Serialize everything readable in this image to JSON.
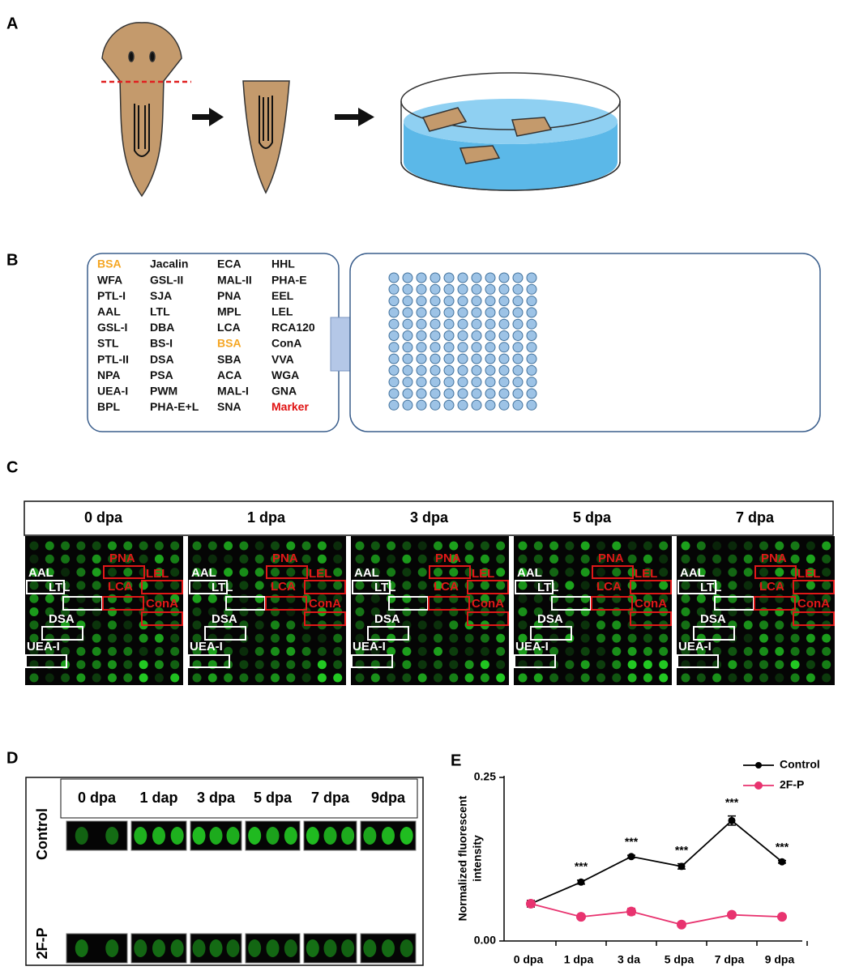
{
  "panels": {
    "a": "A",
    "b": "B",
    "c": "C",
    "d": "D",
    "e": "E"
  },
  "panel_b": {
    "lectins": [
      [
        "BSA",
        "Jacalin",
        "ECA",
        "HHL"
      ],
      [
        "WFA",
        "GSL-II",
        "MAL-II",
        "PHA-E"
      ],
      [
        "PTL-I",
        "SJA",
        "PNA",
        "EEL"
      ],
      [
        "AAL",
        "LTL",
        "MPL",
        "LEL"
      ],
      [
        "GSL-I",
        "DBA",
        "LCA",
        "RCA120"
      ],
      [
        "STL",
        "BS-I",
        "BSA",
        "ConA"
      ],
      [
        "PTL-II",
        "DSA",
        "SBA",
        "VVA"
      ],
      [
        "NPA",
        "PSA",
        "ACA",
        "WGA"
      ],
      [
        "UEA-I",
        "PWM",
        "MAL-I",
        "GNA"
      ],
      [
        "BPL",
        "PHA-E+L",
        "SNA",
        "Marker"
      ]
    ]
  },
  "panel_c": {
    "timepoints": [
      "0 dpa",
      "1 dpa",
      "3 dpa",
      "5 dpa",
      "7 dpa"
    ],
    "white_boxes": [
      "AAL",
      "LTL",
      "DSA",
      "UEA-I"
    ],
    "red_boxes": [
      "PNA",
      "LEL",
      "LCA",
      "ConA"
    ]
  },
  "panel_d": {
    "timepoints": [
      "0 dpa",
      "1 dap",
      "3 dpa",
      "5 dpa",
      "7 dpa",
      "9dpa"
    ],
    "rows": [
      "Control",
      "2F-P"
    ]
  },
  "chart_data": {
    "type": "line",
    "categories": [
      "0 dpa",
      "1 dpa",
      "3 da",
      "5 dpa",
      "7 dpa",
      "9 dpa"
    ],
    "ylabel": [
      "Normalized fluorescent",
      "intensity"
    ],
    "ylim": [
      0,
      0.25
    ],
    "yticks": [
      {
        "value": 0,
        "label": "0.00"
      },
      0.25
    ],
    "series": [
      {
        "name": "Control",
        "color": "#000000",
        "values": [
          0.057,
          0.09,
          0.129,
          0.114,
          0.184,
          0.121
        ],
        "errors": [
          0.005,
          0.003,
          0.002,
          0.004,
          0.007,
          0.002
        ]
      },
      {
        "name": "2F-P",
        "color": "#e8336f",
        "values": [
          0.057,
          0.037,
          0.045,
          0.025,
          0.04,
          0.037
        ],
        "errors": [
          0.003,
          0.002,
          0.005,
          0.002,
          0.002,
          0.002
        ]
      }
    ],
    "significance": [
      null,
      "***",
      "***",
      "***",
      "***",
      "***"
    ]
  }
}
